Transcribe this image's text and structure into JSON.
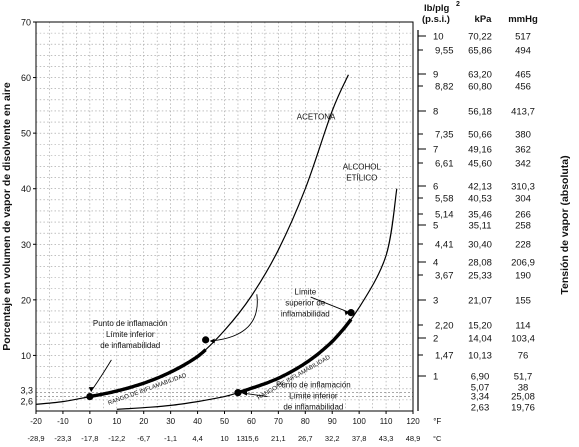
{
  "chart_data": {
    "type": "line",
    "y_axis_label": "Porcentaje en volumen de vapor de disolvente en aire",
    "right_axis_label": "Tensión de vapor (absoluta)",
    "x_unit_f": "°F",
    "x_unit_c": "°C",
    "x_ticks_f": [
      -20,
      -10,
      0,
      10,
      20,
      30,
      40,
      50,
      60,
      70,
      80,
      90,
      100,
      110,
      120
    ],
    "x_ticks_c": [
      {
        "f": -20,
        "label": "-28,9"
      },
      {
        "f": -10,
        "label": "-23,3"
      },
      {
        "f": 0,
        "label": "-17,8"
      },
      {
        "f": 10,
        "label": "-12,2"
      },
      {
        "f": 20,
        "label": "-6,7"
      },
      {
        "f": 30,
        "label": "-1,1"
      },
      {
        "f": 40,
        "label": "4,4"
      },
      {
        "f": 50,
        "label": "10"
      },
      {
        "f": 56,
        "label": "13"
      },
      {
        "f": 60,
        "label": "15,6"
      },
      {
        "f": 70,
        "label": "21,1"
      },
      {
        "f": 80,
        "label": "26,7"
      },
      {
        "f": 90,
        "label": "32,2"
      },
      {
        "f": 100,
        "label": "37,8"
      },
      {
        "f": 110,
        "label": "43,3"
      },
      {
        "f": 120,
        "label": "48,9"
      }
    ],
    "xlim_f": [
      -20,
      120
    ],
    "ylim": [
      0,
      70
    ],
    "y_ticks": [
      10,
      20,
      30,
      40,
      50,
      60,
      70
    ],
    "y_extra_ticks": [
      {
        "value": 3.3,
        "label": "3,3"
      },
      {
        "value": 2.6,
        "label": "2,6"
      }
    ],
    "series": [
      {
        "name": "ACETONA",
        "x": [
          -20,
          -10,
          0,
          10,
          20,
          30,
          40,
          50,
          60,
          70,
          80,
          90,
          96
        ],
        "y": [
          1.2,
          1.7,
          2.6,
          3.6,
          5.0,
          7.0,
          9.8,
          14.5,
          20.7,
          29.0,
          40.0,
          54.0,
          60.5
        ]
      },
      {
        "name": "ALCOHOL ETÍLICO",
        "x": [
          10,
          20,
          30,
          40,
          50,
          55,
          60,
          70,
          80,
          90,
          100,
          110,
          114
        ],
        "y": [
          0.3,
          0.6,
          1.0,
          1.7,
          2.6,
          3.3,
          4.1,
          5.9,
          8.6,
          12.5,
          18.6,
          28.0,
          40.0
        ]
      }
    ],
    "flammability_segments": [
      {
        "series": "ACETONA",
        "x_from": 0,
        "x_to": 43,
        "label": "RANGO DE INFLAMABILIDAD"
      },
      {
        "series": "ALCOHOL ETÍLICO",
        "x_from": 55,
        "x_to": 97,
        "label": "RANGO DE INFLAMABILIDAD"
      }
    ],
    "key_points": [
      {
        "x": 0,
        "y": 2.6
      },
      {
        "x": 43,
        "y": 12.8
      },
      {
        "x": 55,
        "y": 3.3
      },
      {
        "x": 97,
        "y": 17.7
      }
    ],
    "annotations": {
      "acetona_label": "ACETONA",
      "alcohol_label_1": "ALCOHOL",
      "alcohol_label_2": "ETÍLICO",
      "left_note": [
        "Punto de inflamación",
        "Límite inferior",
        "de inflamabilidad"
      ],
      "upper_note": [
        "Límite",
        "superior de",
        "inflamabilidad"
      ],
      "right_note": [
        "Punto de inflamación",
        "Límite inferior",
        "de inflamabilidad"
      ]
    },
    "pressure_scale": {
      "headers": {
        "psi_line1": "lb/plg",
        "psi_sup": "2",
        "psi_line2": "(p.s.i.)",
        "kpa": "kPa",
        "mmhg": "mmHg"
      },
      "rows": [
        {
          "psi": "10",
          "kpa": "70,22",
          "mmhg": "517",
          "major": true
        },
        {
          "psi": "9,55",
          "kpa": "65,86",
          "mmhg": "494",
          "major": false
        },
        {
          "psi": "9",
          "kpa": "63,20",
          "mmhg": "465",
          "major": true
        },
        {
          "psi": "8,82",
          "kpa": "60,80",
          "mmhg": "456",
          "major": false
        },
        {
          "psi": "8",
          "kpa": "56,18",
          "mmhg": "413,7",
          "major": true
        },
        {
          "psi": "7,35",
          "kpa": "50,66",
          "mmhg": "380",
          "major": false
        },
        {
          "psi": "7",
          "kpa": "49,16",
          "mmhg": "362",
          "major": true
        },
        {
          "psi": "6,61",
          "kpa": "45,60",
          "mmhg": "342",
          "major": false
        },
        {
          "psi": "6",
          "kpa": "42,13",
          "mmhg": "310,3",
          "major": true
        },
        {
          "psi": "5,58",
          "kpa": "40,53",
          "mmhg": "304",
          "major": false
        },
        {
          "psi": "5,14",
          "kpa": "35,46",
          "mmhg": "266",
          "major": false
        },
        {
          "psi": "5",
          "kpa": "35,11",
          "mmhg": "258",
          "major": true
        },
        {
          "psi": "4,41",
          "kpa": "30,40",
          "mmhg": "228",
          "major": false
        },
        {
          "psi": "4",
          "kpa": "28,08",
          "mmhg": "206,9",
          "major": true
        },
        {
          "psi": "3,67",
          "kpa": "25,33",
          "mmhg": "190",
          "major": false
        },
        {
          "psi": "3",
          "kpa": "21,07",
          "mmhg": "155",
          "major": true
        },
        {
          "psi": "2,20",
          "kpa": "15,20",
          "mmhg": "114",
          "major": false
        },
        {
          "psi": "2",
          "kpa": "14,04",
          "mmhg": "103,4",
          "major": true
        },
        {
          "psi": "1,47",
          "kpa": "10,13",
          "mmhg": "76",
          "major": false
        },
        {
          "psi": "1",
          "kpa": "6,90",
          "mmhg": "51,7",
          "major": true
        },
        {
          "psi": "",
          "kpa": "5,07",
          "mmhg": "38",
          "major": false
        },
        {
          "psi": "",
          "kpa": "3,34",
          "mmhg": "25,08",
          "major": false
        },
        {
          "psi": "",
          "kpa": "2,63",
          "mmhg": "19,76",
          "major": false
        }
      ]
    }
  }
}
